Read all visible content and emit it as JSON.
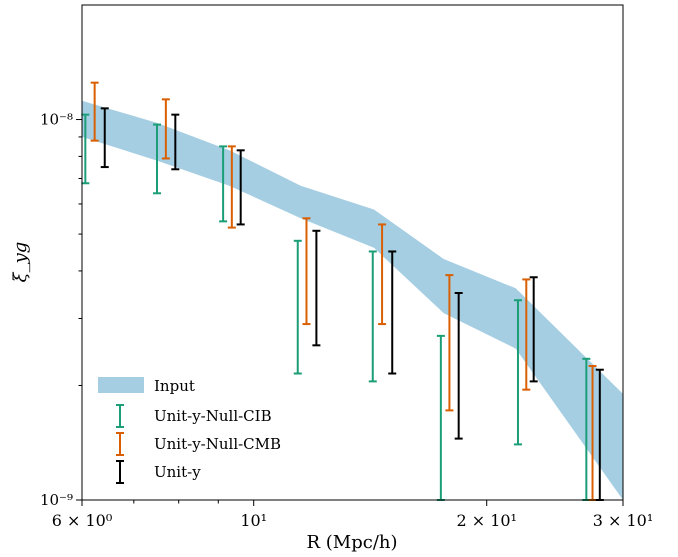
{
  "chart_data": {
    "type": "line",
    "title": "",
    "xlabel": "R (Mpc/h)",
    "ylabel": "ξ_yg",
    "xscale": "log",
    "yscale": "log",
    "xlim": [
      6,
      30
    ],
    "ylim": [
      1e-09,
      2e-08
    ],
    "x_ticks": [
      {
        "value": 6,
        "label": "6 × 10⁰"
      },
      {
        "value": 10,
        "label": "10¹"
      },
      {
        "value": 20,
        "label": "2 × 10¹"
      },
      {
        "value": 30,
        "label": "3 × 10¹"
      }
    ],
    "y_ticks": [
      {
        "value": 1e-09,
        "label": "10⁻⁹"
      },
      {
        "value": 1e-08,
        "label": "10⁻⁸"
      }
    ],
    "grid": false,
    "legend_position": "lower-left",
    "band": {
      "name": "Input",
      "color": "#a6cee3",
      "x": [
        6.0,
        7.5,
        9.3,
        11.5,
        14.3,
        17.6,
        21.8,
        30.0
      ],
      "lower": [
        9e-09,
        7.8e-09,
        6.7e-09,
        5.5e-09,
        4.6e-09,
        3.1e-09,
        2.5e-09,
        1e-09
      ],
      "upper": [
        1.12e-08,
        9.8e-09,
        8.3e-09,
        6.7e-09,
        5.8e-09,
        4.3e-09,
        3.6e-09,
        1.9e-09
      ]
    },
    "series": [
      {
        "name": "Unit-y-Null-CIB",
        "color": "#1b9e77",
        "x": [
          6.06,
          7.5,
          9.13,
          11.4,
          14.25,
          17.45,
          21.95,
          26.9
        ],
        "lower": [
          6.8e-09,
          6.4e-09,
          5.4e-09,
          2.15e-09,
          2.05e-09,
          1e-09,
          1.4e-09,
          1e-09
        ],
        "upper": [
          1.03e-08,
          9.7e-09,
          8.5e-09,
          4.8e-09,
          4.5e-09,
          2.7e-09,
          3.35e-09,
          2.35e-09
        ]
      },
      {
        "name": "Unit-y-Null-CMB",
        "color": "#d95f02",
        "x": [
          6.23,
          7.7,
          9.37,
          11.7,
          14.65,
          17.9,
          22.5,
          27.4
        ],
        "lower": [
          8.8e-09,
          7.9e-09,
          5.2e-09,
          2.9e-09,
          2.9e-09,
          1.72e-09,
          1.95e-09,
          1e-09
        ],
        "upper": [
          1.25e-08,
          1.13e-08,
          8.5e-09,
          5.5e-09,
          5.3e-09,
          3.9e-09,
          3.8e-09,
          2.25e-09
        ]
      },
      {
        "name": "Unit-y",
        "color": "#000000",
        "x": [
          6.42,
          7.92,
          9.62,
          12.05,
          15.1,
          18.4,
          23.0,
          28.0
        ],
        "lower": [
          7.5e-09,
          7.4e-09,
          5.3e-09,
          2.55e-09,
          2.15e-09,
          1.45e-09,
          2.05e-09,
          1e-09
        ],
        "upper": [
          1.07e-08,
          1.03e-08,
          8.3e-09,
          5.1e-09,
          4.5e-09,
          3.5e-09,
          3.85e-09,
          2.2e-09
        ]
      }
    ]
  }
}
